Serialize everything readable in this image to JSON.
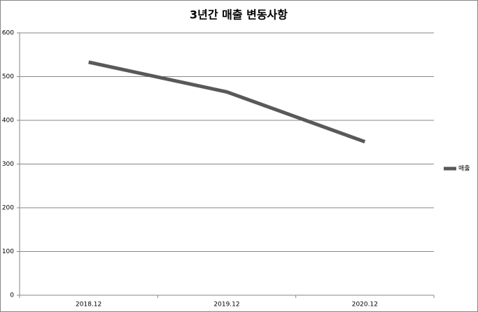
{
  "chart_data": {
    "type": "line",
    "title": "3년간 매출 변동사항",
    "categories": [
      "2018.12",
      "2019.12",
      "2020.12"
    ],
    "series": [
      {
        "name": "매출",
        "color": "#595959",
        "values": [
          533,
          465,
          351
        ]
      }
    ],
    "ylim": [
      0,
      600
    ],
    "yticks": [
      0,
      100,
      200,
      300,
      400,
      500,
      600
    ],
    "grid": true,
    "legend": "right"
  }
}
